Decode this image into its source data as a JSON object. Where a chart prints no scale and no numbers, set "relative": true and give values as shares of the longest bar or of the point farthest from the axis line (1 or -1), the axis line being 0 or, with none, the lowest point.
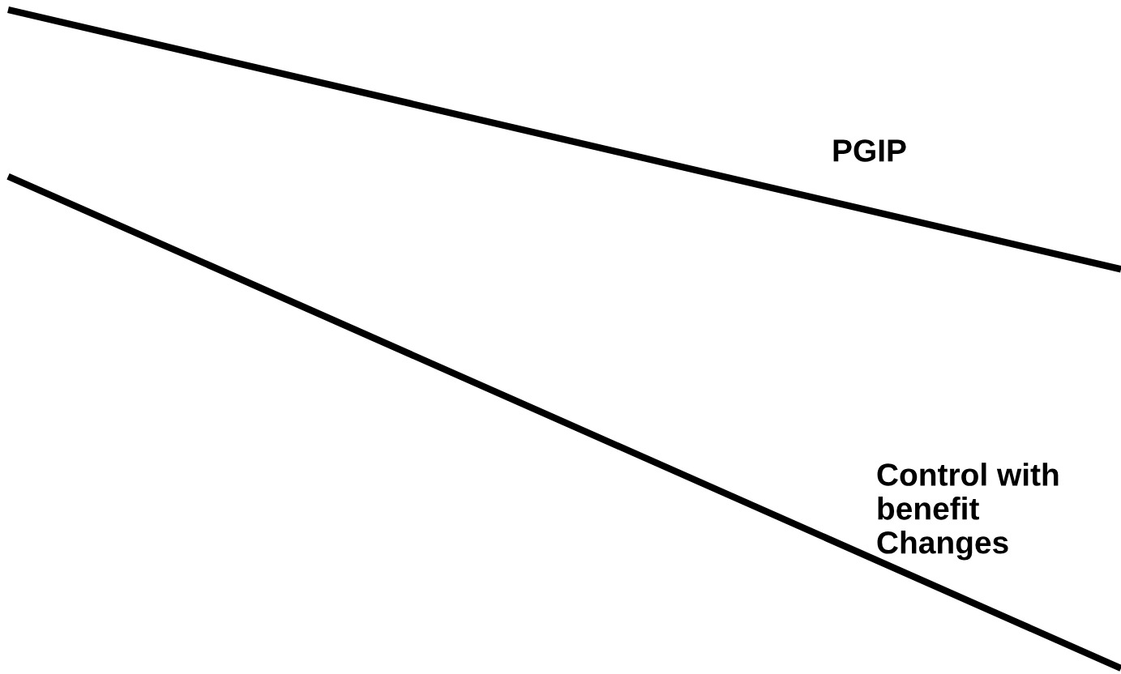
{
  "chart_data": {
    "type": "line",
    "relative": true,
    "categories": [
      null,
      null
    ],
    "legend": false,
    "marker": "none",
    "line_style": "solid",
    "series": [
      {
        "name": "PGIP",
        "color": "#000000",
        "values": [
          1,
          0.606
        ]
      },
      {
        "name": "Control with\nbenefit\nChanges",
        "color": "#000000",
        "values": [
          0.747,
          0
        ]
      }
    ]
  }
}
